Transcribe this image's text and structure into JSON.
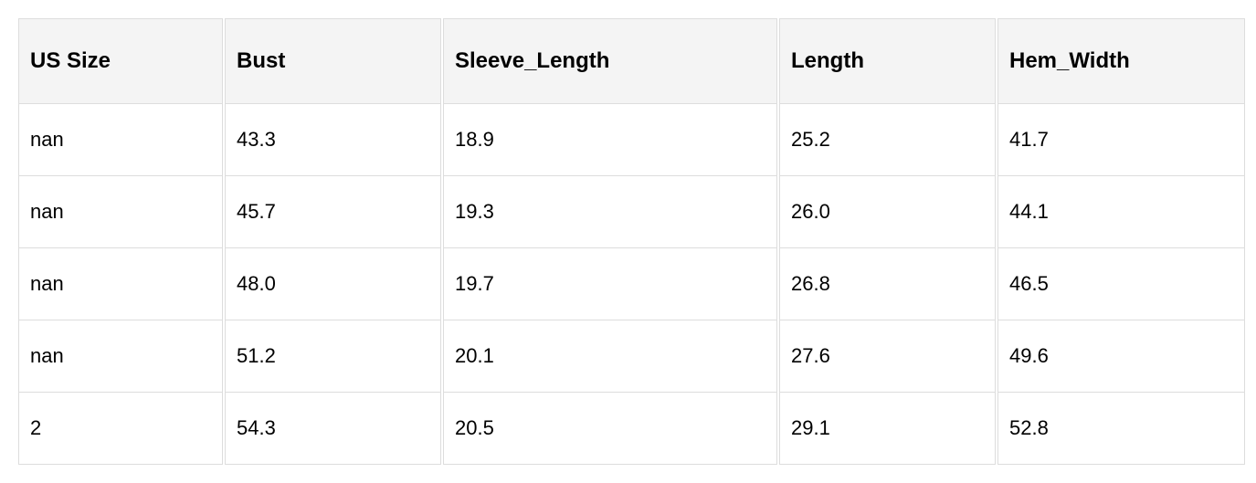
{
  "table": {
    "headers": [
      "US Size",
      "Bust",
      "Sleeve_Length",
      "Length",
      "Hem_Width"
    ],
    "rows": [
      [
        "nan",
        "43.3",
        "18.9",
        "25.2",
        "41.7"
      ],
      [
        "nan",
        "45.7",
        "19.3",
        "26.0",
        "44.1"
      ],
      [
        "nan",
        "48.0",
        "19.7",
        "26.8",
        "46.5"
      ],
      [
        "nan",
        "51.2",
        "20.1",
        "27.6",
        "49.6"
      ],
      [
        "2",
        "54.3",
        "20.5",
        "29.1",
        "52.8"
      ]
    ]
  },
  "colors": {
    "header_bg": "#f4f4f4",
    "border": "#dddddd"
  }
}
